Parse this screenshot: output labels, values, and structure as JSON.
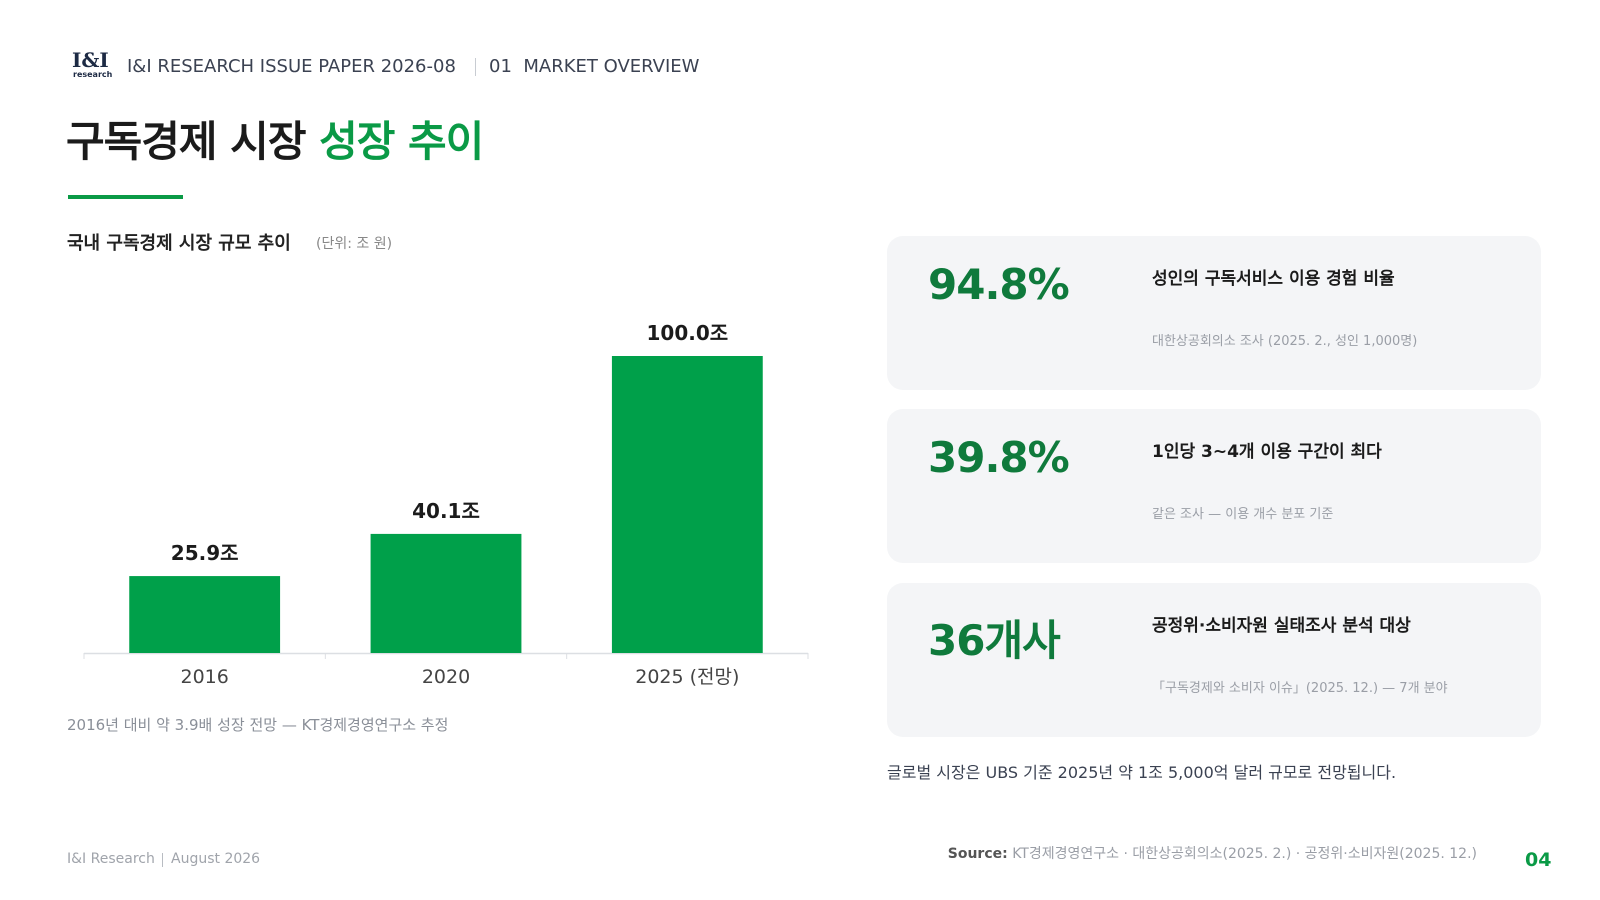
{
  "header": {
    "logo": "I&I",
    "logo_sub": "research",
    "paper": "I&I RESEARCH ISSUE PAPER 2026-08",
    "section": "01  MARKET OVERVIEW",
    "title": "구독경제 시장",
    "title_highlight": "성장 추이"
  },
  "chart_data": {
    "type": "bar",
    "title": "국내 구독경제 시장 규모 추이",
    "unit": "(단위: 조 원)",
    "categories": [
      "2016",
      "2020",
      "2025 (전망)"
    ],
    "values": [
      25.9,
      40.1,
      100.0
    ],
    "value_labels": [
      "25.9조",
      "40.1조",
      "100.0조"
    ],
    "color": "#00a04a",
    "ylim": [
      0,
      100
    ],
    "note": "2016년 대비 약 3.9배 성장 전망 — KT경제경영연구소 추정"
  },
  "stats": [
    {
      "value": "94.8%",
      "label": "성인의 구독서비스 이용 경험 비율",
      "source": "대한상공회의소 조사 (2025. 2., 성인 1,000명)"
    },
    {
      "value": "39.8%",
      "label": "1인당 3~4개 이용 구간이 최다",
      "source": "같은 조사 — 이용 개수 분포 기준"
    },
    {
      "value": "36개사",
      "label": "공정위·소비자원 실태조사 분석 대상",
      "source": "「구독경제와 소비자 이슈」(2025. 12.) — 7개 분야"
    }
  ],
  "global_note": "글로벌 시장은 UBS 기준 2025년 약 1조 5,000억 달러 규모로 전망됩니다.",
  "footer": {
    "org": "I&I Research",
    "date": "August 2026",
    "source_label": "Source:",
    "source": "KT경제경영연구소 · 대한상공회의소(2025. 2.) · 공정위·소비자원(2025. 12.)",
    "page": "04"
  }
}
